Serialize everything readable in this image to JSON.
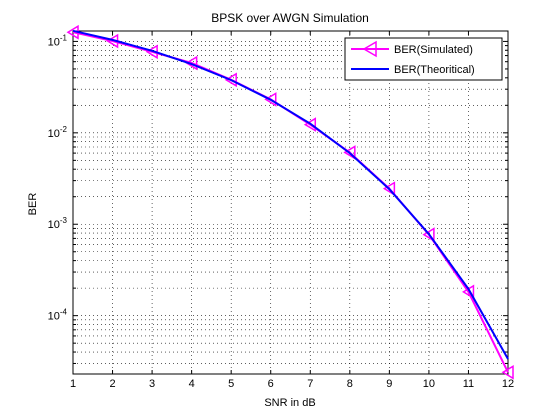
{
  "chart_data": {
    "type": "line",
    "title": "BPSK over AWGN Simulation",
    "xlabel": "SNR in dB",
    "ylabel": "BER",
    "xlim": [
      1,
      12
    ],
    "ylim": [
      2.3e-05,
      0.13
    ],
    "yscale": "log",
    "grid": true,
    "legend_position": "top-right",
    "x": [
      1,
      2,
      3,
      4,
      5,
      6,
      7,
      8,
      9,
      10,
      11,
      12
    ],
    "x_ticks": [
      "1",
      "2",
      "3",
      "4",
      "5",
      "6",
      "7",
      "8",
      "9",
      "10",
      "11",
      "12"
    ],
    "y_ticks": [
      {
        "base": "10",
        "exp": "-1",
        "value": 0.1
      },
      {
        "base": "10",
        "exp": "-2",
        "value": 0.01
      },
      {
        "base": "10",
        "exp": "-3",
        "value": 0.001
      },
      {
        "base": "10",
        "exp": "-4",
        "value": 0.0001
      }
    ],
    "series": [
      {
        "name": "BER(Simulated)",
        "color": "#ff00ff",
        "marker": "triangle-left",
        "values": [
          0.126,
          0.101,
          0.077,
          0.058,
          0.038,
          0.0232,
          0.0123,
          0.0061,
          0.00245,
          0.00077,
          0.000182,
          2.4e-05
        ]
      },
      {
        "name": "BER(Theoritical)",
        "color": "#0000ff",
        "marker": "none",
        "values": [
          0.1305,
          0.104,
          0.0789,
          0.0565,
          0.0377,
          0.023,
          0.0126,
          0.006,
          0.00242,
          0.00078,
          0.000195,
          3.36e-05
        ]
      }
    ]
  }
}
